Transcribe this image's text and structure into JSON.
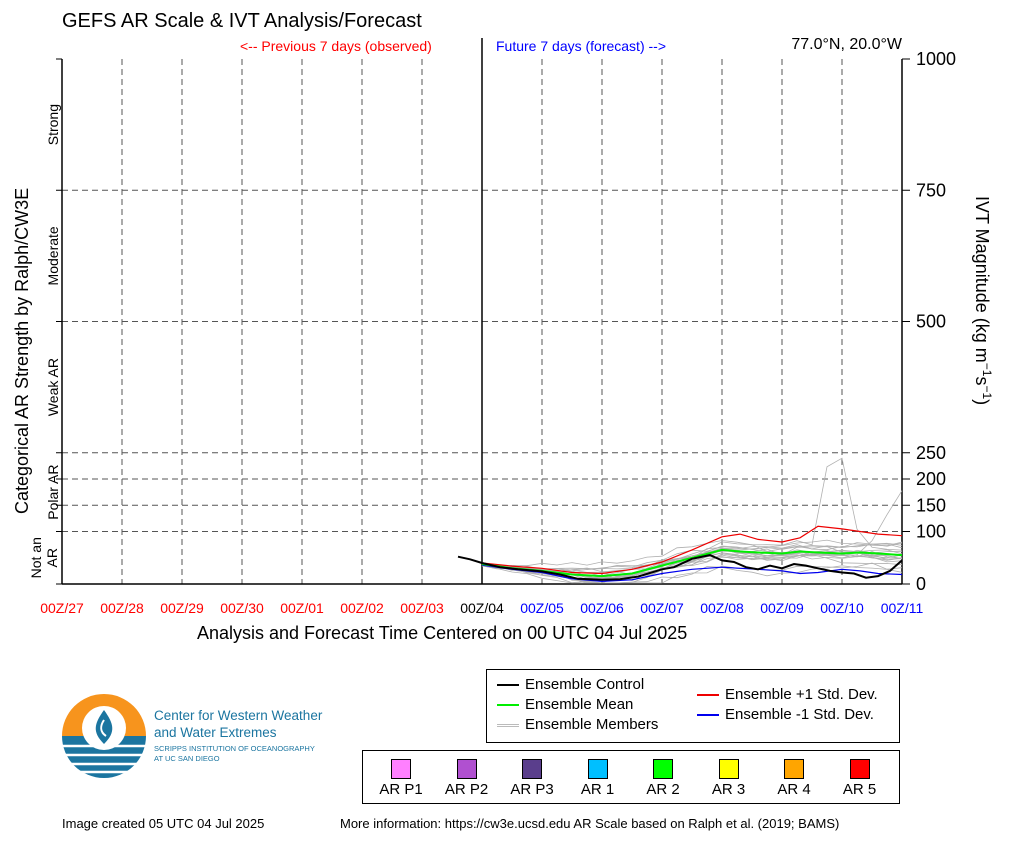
{
  "title": "GEFS AR Scale & IVT Analysis/Forecast",
  "coords": "77.0°N, 20.0°W",
  "previous_label": "<-- Previous 7 days (observed)",
  "future_label": "Future 7 days (forecast) -->",
  "created": "Image created 05 UTC 04 Jul 2025",
  "more_info": "More information: https://cw3e.ucsd.edu AR Scale based on Ralph et al. (2019; BAMS)",
  "logo": {
    "line1": "Center for Western Weather",
    "line2": "and Water Extremes",
    "line3": "SCRIPPS INSTITUTION OF OCEANOGRAPHY",
    "line4": "AT UC SAN DIEGO"
  },
  "legend": {
    "control": "Ensemble Control",
    "mean": "Ensemble Mean",
    "members": "Ensemble Members",
    "plus": "Ensemble +1 Std. Dev.",
    "minus": "Ensemble -1 Std. Dev."
  },
  "ar_scale": [
    {
      "label": "AR P1",
      "color": "#ff80ff"
    },
    {
      "label": "AR P2",
      "color": "#b050d0"
    },
    {
      "label": "AR P3",
      "color": "#5a3e8c"
    },
    {
      "label": "AR 1",
      "color": "#00bfff"
    },
    {
      "label": "AR 2",
      "color": "#00ff00"
    },
    {
      "label": "AR 3",
      "color": "#ffff00"
    },
    {
      "label": "AR 4",
      "color": "#ffa500"
    },
    {
      "label": "AR 5",
      "color": "#ff0000"
    }
  ],
  "colors": {
    "observed": "#ff0000",
    "forecast": "#0000ff",
    "control": "#000000",
    "mean": "#00ee00",
    "plus": "#ee0000",
    "minus": "#0000ee",
    "members": "#aaaaaa",
    "logo_orange": "#f7941d",
    "logo_teal": "#1b75a0"
  },
  "chart_data": {
    "type": "line",
    "xlabel": "Analysis and Forecast Time Centered on 00 UTC 04 Jul 2025",
    "ylabel_right": "IVT Magnitude (kg m^-1 s^-1)",
    "ylabel_left": "Categorical AR Strength by Ralph/CW3E",
    "ylim": [
      0,
      1000
    ],
    "y_ticks": [
      0,
      100,
      150,
      200,
      250,
      500,
      750,
      1000
    ],
    "categories_left": [
      "Not an AR",
      "Polar AR",
      "Weak AR",
      "Moderate",
      "Strong"
    ],
    "x_tick_labels": [
      "00Z/27",
      "00Z/28",
      "00Z/29",
      "00Z/30",
      "00Z/01",
      "00Z/02",
      "00Z/03",
      "00Z/04",
      "00Z/05",
      "00Z/06",
      "00Z/07",
      "00Z/08",
      "00Z/09",
      "00Z/10",
      "00Z/11"
    ],
    "x_tick_kind": [
      "observed",
      "observed",
      "observed",
      "observed",
      "observed",
      "observed",
      "observed",
      "now",
      "forecast",
      "forecast",
      "forecast",
      "forecast",
      "forecast",
      "forecast",
      "forecast"
    ],
    "x_range_days": [
      -7,
      7
    ],
    "grid": true,
    "series": [
      {
        "name": "Ensemble Control",
        "x": [
          -0.4,
          -0.2,
          0,
          0.3,
          0.6,
          1,
          1.3,
          1.6,
          2,
          2.3,
          2.6,
          3,
          3.2,
          3.5,
          3.8,
          4,
          4.2,
          4.4,
          4.6,
          4.8,
          5,
          5.2,
          5.4,
          5.6,
          5.8,
          6,
          6.2,
          6.4,
          6.6,
          6.8,
          7
        ],
        "y": [
          52,
          47,
          40,
          32,
          28,
          24,
          18,
          10,
          8,
          9,
          14,
          28,
          32,
          48,
          55,
          45,
          42,
          32,
          28,
          35,
          30,
          38,
          35,
          30,
          25,
          22,
          20,
          12,
          15,
          25,
          45
        ]
      },
      {
        "name": "Ensemble Mean",
        "x": [
          0,
          0.5,
          1,
          1.5,
          2,
          2.5,
          3,
          3.5,
          4,
          4.3,
          4.6,
          5,
          5.3,
          5.6,
          6,
          6.3,
          6.6,
          7
        ],
        "y": [
          38,
          30,
          25,
          18,
          15,
          20,
          35,
          50,
          65,
          62,
          60,
          58,
          62,
          60,
          58,
          60,
          58,
          55
        ]
      },
      {
        "name": "Ensemble +1 Std. Dev.",
        "x": [
          0,
          0.5,
          1,
          1.5,
          2,
          2.5,
          3,
          3.5,
          4,
          4.3,
          4.6,
          5,
          5.3,
          5.6,
          6,
          6.3,
          6.6,
          7
        ],
        "y": [
          40,
          34,
          30,
          22,
          20,
          28,
          42,
          65,
          90,
          95,
          85,
          80,
          88,
          110,
          105,
          100,
          95,
          92
        ]
      },
      {
        "name": "Ensemble -1 Std. Dev.",
        "x": [
          0,
          0.5,
          1,
          1.5,
          2,
          2.5,
          3,
          3.5,
          4,
          4.3,
          4.6,
          5,
          5.3,
          5.6,
          6,
          6.3,
          6.6,
          7
        ],
        "y": [
          36,
          28,
          22,
          10,
          5,
          8,
          20,
          28,
          32,
          30,
          28,
          25,
          20,
          22,
          28,
          25,
          20,
          18
        ]
      }
    ]
  }
}
